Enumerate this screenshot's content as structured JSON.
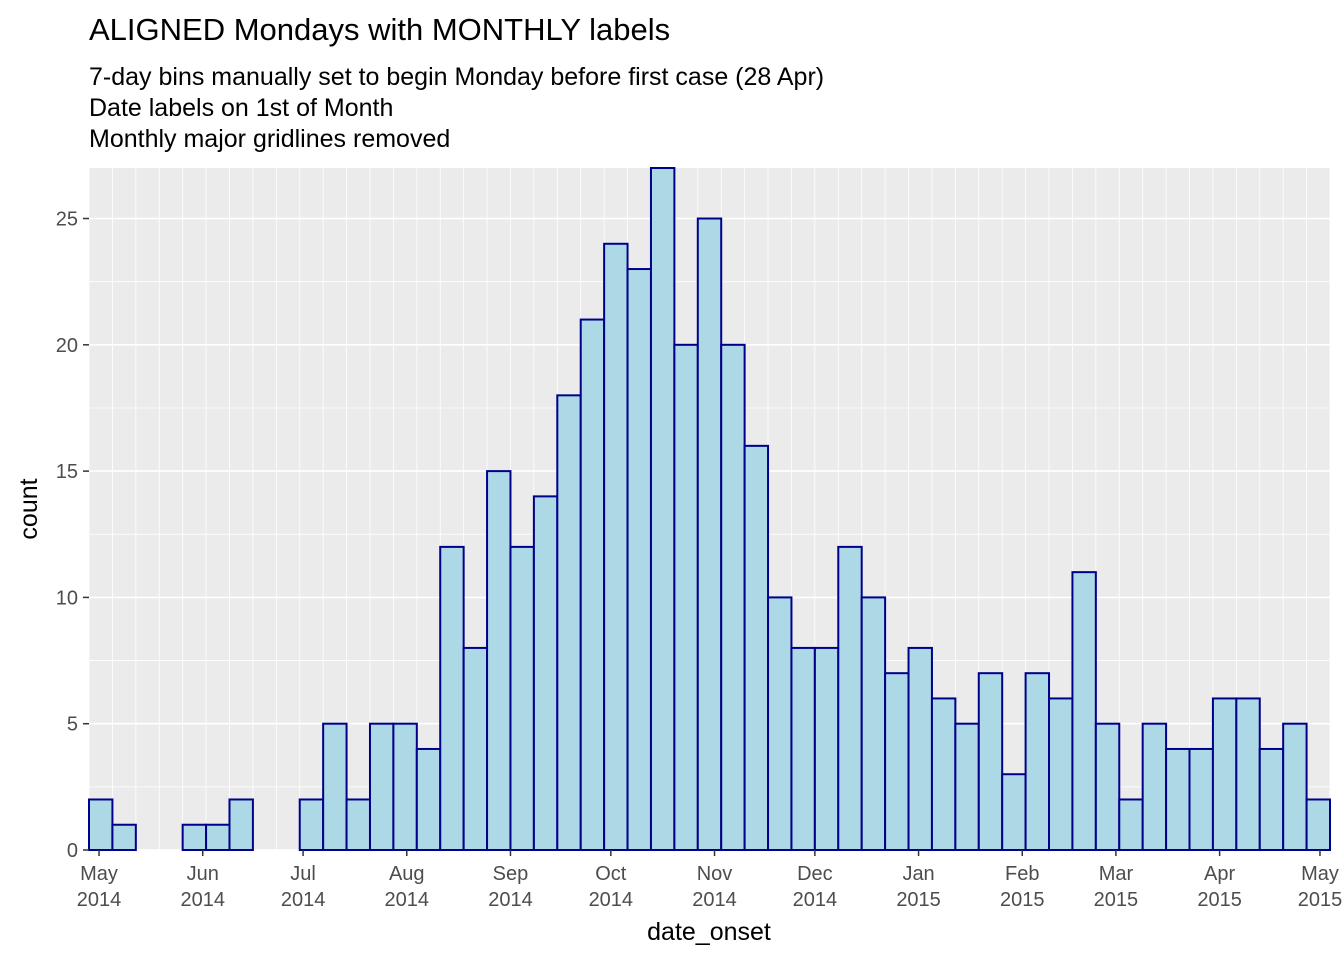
{
  "chart_data": {
    "type": "bar",
    "title": "ALIGNED Mondays with MONTHLY labels",
    "subtitle": [
      "7-day bins manually set to begin Monday before first case (28 Apr)",
      "Date labels on 1st of Month",
      "Monthly major gridlines removed"
    ],
    "xlabel": "date_onset",
    "ylabel": "count",
    "bin_start_first": "2014-04-28",
    "bin_width_days": 7,
    "values": [
      2,
      1,
      0,
      0,
      1,
      1,
      2,
      0,
      0,
      2,
      5,
      2,
      5,
      5,
      4,
      12,
      8,
      15,
      12,
      14,
      18,
      21,
      24,
      23,
      27,
      20,
      25,
      20,
      16,
      10,
      8,
      8,
      12,
      10,
      7,
      8,
      6,
      5,
      7,
      3,
      7,
      6,
      11,
      5,
      2,
      5,
      4,
      4,
      6,
      6,
      4,
      5,
      2
    ],
    "ylim": [
      0,
      27
    ],
    "yticks": [
      0,
      5,
      10,
      15,
      20,
      25
    ],
    "xlim": [
      "2014-04-28",
      "2015-05-04"
    ],
    "xticks": [
      {
        "date": "2014-05-01",
        "month": "May",
        "year": "2014"
      },
      {
        "date": "2014-06-01",
        "month": "Jun",
        "year": "2014"
      },
      {
        "date": "2014-07-01",
        "month": "Jul",
        "year": "2014"
      },
      {
        "date": "2014-08-01",
        "month": "Aug",
        "year": "2014"
      },
      {
        "date": "2014-09-01",
        "month": "Sep",
        "year": "2014"
      },
      {
        "date": "2014-10-01",
        "month": "Oct",
        "year": "2014"
      },
      {
        "date": "2014-11-01",
        "month": "Nov",
        "year": "2014"
      },
      {
        "date": "2014-12-01",
        "month": "Dec",
        "year": "2014"
      },
      {
        "date": "2015-01-01",
        "month": "Jan",
        "year": "2015"
      },
      {
        "date": "2015-02-01",
        "month": "Feb",
        "year": "2015"
      },
      {
        "date": "2015-03-01",
        "month": "Mar",
        "year": "2015"
      },
      {
        "date": "2015-04-01",
        "month": "Apr",
        "year": "2015"
      },
      {
        "date": "2015-05-01",
        "month": "May",
        "year": "2015"
      }
    ],
    "grid": "on",
    "legend": "none",
    "colors": {
      "bar_fill": "#add8e6",
      "bar_outline": "#00008b",
      "panel_background": "#ebebeb",
      "grid": "#ffffff"
    }
  }
}
